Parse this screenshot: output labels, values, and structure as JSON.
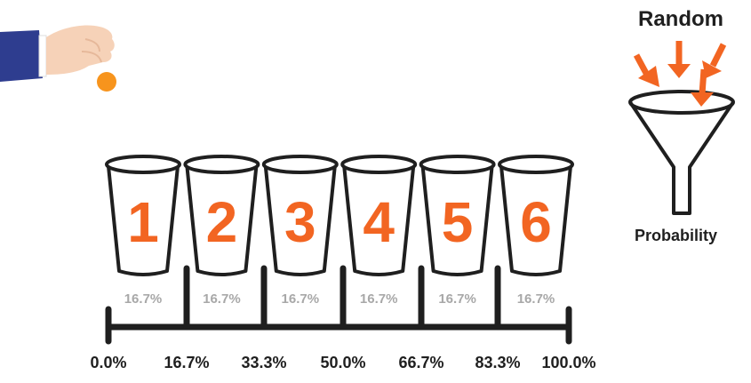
{
  "diagram": {
    "cups": [
      {
        "number": "1",
        "percent": "16.7%"
      },
      {
        "number": "2",
        "percent": "16.7%"
      },
      {
        "number": "3",
        "percent": "16.7%"
      },
      {
        "number": "4",
        "percent": "16.7%"
      },
      {
        "number": "5",
        "percent": "16.7%"
      },
      {
        "number": "6",
        "percent": "16.7%"
      }
    ],
    "scale_labels": [
      "0.0%",
      "16.7%",
      "33.3%",
      "50.0%",
      "66.7%",
      "83.3%",
      "100.0%"
    ],
    "funnel": {
      "title": "Random",
      "caption": "Probability"
    }
  },
  "colors": {
    "accent": "#f26522",
    "ink": "#1f1f1f",
    "muted": "#a8a8a8",
    "sleeve": "#2e3d8f",
    "skin": "#f6d2b8",
    "coin": "#f7941d"
  },
  "icons": [
    "hand-icon",
    "coin-icon",
    "funnel-icon",
    "arrow-icon"
  ]
}
